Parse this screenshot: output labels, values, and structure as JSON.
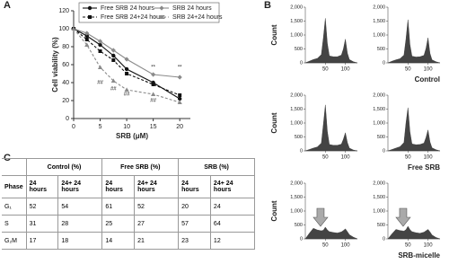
{
  "panels": [
    "A",
    "B",
    "C"
  ],
  "chart_data": [
    {
      "type": "line",
      "xlabel": "SRB (μM)",
      "ylabel": "Cell viability (%)",
      "x": [
        0,
        2.5,
        5,
        7.5,
        10,
        15,
        20
      ],
      "xlim": [
        0,
        22
      ],
      "xticks": [
        0,
        5,
        10,
        15,
        20
      ],
      "ylim": [
        0,
        120
      ],
      "yticks": [
        0,
        20,
        40,
        60,
        80,
        100,
        120
      ],
      "legend": "top",
      "series": [
        {
          "name": "Free SRB 24 hours",
          "color": "#111111",
          "dash": false,
          "marker": "circle",
          "values": [
            100,
            92,
            82,
            70,
            55,
            40,
            22
          ]
        },
        {
          "name": "SRB 24 hours",
          "color": "#8a8a8a",
          "dash": false,
          "marker": "diamond",
          "values": [
            100,
            95,
            86,
            76,
            66,
            49,
            46
          ]
        },
        {
          "name": "Free SRB 24+24 hours",
          "color": "#111111",
          "dash": true,
          "marker": "square",
          "values": [
            100,
            88,
            75,
            65,
            50,
            38,
            26
          ]
        },
        {
          "name": "SRB 24+24 hours",
          "color": "#8a8a8a",
          "dash": true,
          "marker": "triangle",
          "values": [
            100,
            82,
            57,
            42,
            32,
            27,
            18
          ]
        }
      ],
      "annotations": [
        {
          "text": "**",
          "x": 15,
          "y": 57
        },
        {
          "text": "**",
          "x": 20,
          "y": 57
        },
        {
          "text": "##",
          "x": 5,
          "y": 40
        },
        {
          "text": "##",
          "x": 7.5,
          "y": 33
        },
        {
          "text": "##",
          "x": 10,
          "y": 27
        },
        {
          "text": "##",
          "x": 15,
          "y": 20
        }
      ]
    },
    {
      "type": "area",
      "ylabel": "Count",
      "x": [
        0,
        10,
        20,
        30,
        40,
        45,
        50,
        55,
        60,
        70,
        80,
        90,
        95,
        100,
        105,
        110,
        120,
        130
      ],
      "values": [
        0,
        60,
        120,
        160,
        300,
        900,
        1600,
        700,
        250,
        220,
        220,
        280,
        500,
        850,
        350,
        120,
        40,
        0
      ],
      "xlim": [
        0,
        130
      ],
      "xticks": [
        50,
        100
      ],
      "ylim": [
        0,
        2000
      ],
      "yticks": [
        0,
        500,
        {
          "value": 1000,
          "label": "1,000"
        },
        {
          "value": 1500,
          "label": "1,500"
        },
        {
          "value": 2000,
          "label": "2,000"
        }
      ]
    },
    {
      "type": "area",
      "x": [
        0,
        10,
        20,
        30,
        40,
        45,
        50,
        55,
        60,
        70,
        80,
        90,
        95,
        100,
        105,
        110,
        120,
        130
      ],
      "values": [
        0,
        60,
        110,
        150,
        280,
        850,
        1550,
        650,
        240,
        210,
        220,
        270,
        520,
        900,
        340,
        110,
        40,
        0
      ],
      "xlim": [
        0,
        130
      ],
      "xticks": [
        50,
        100
      ],
      "ylim": [
        0,
        2000
      ],
      "yticks": [
        0,
        500,
        {
          "value": 1000,
          "label": "1,000"
        },
        {
          "value": 1500,
          "label": "1,500"
        },
        {
          "value": 2000,
          "label": "2,000"
        }
      ]
    },
    {
      "type": "area",
      "ylabel": "Count",
      "x": [
        0,
        10,
        20,
        30,
        40,
        45,
        50,
        55,
        60,
        70,
        80,
        90,
        95,
        100,
        105,
        110,
        120,
        130
      ],
      "values": [
        0,
        50,
        100,
        140,
        280,
        950,
        1650,
        700,
        230,
        200,
        200,
        240,
        420,
        650,
        300,
        100,
        30,
        0
      ],
      "xlim": [
        0,
        130
      ],
      "xticks": [
        50,
        100
      ],
      "ylim": [
        0,
        2000
      ],
      "yticks": [
        0,
        500,
        {
          "value": 1000,
          "label": "1,000"
        },
        {
          "value": 1500,
          "label": "1,500"
        },
        {
          "value": 2000,
          "label": "2,000"
        }
      ]
    },
    {
      "type": "area",
      "x": [
        0,
        10,
        20,
        30,
        40,
        45,
        50,
        55,
        60,
        70,
        80,
        90,
        95,
        100,
        105,
        110,
        120,
        130
      ],
      "values": [
        0,
        50,
        100,
        150,
        300,
        1000,
        1550,
        680,
        250,
        220,
        230,
        280,
        480,
        750,
        320,
        110,
        40,
        0
      ],
      "xlim": [
        0,
        130
      ],
      "xticks": [
        50,
        100
      ],
      "ylim": [
        0,
        2000
      ],
      "yticks": [
        0,
        500,
        {
          "value": 1000,
          "label": "1,000"
        },
        {
          "value": 1500,
          "label": "1,500"
        },
        {
          "value": 2000,
          "label": "2,000"
        }
      ]
    },
    {
      "type": "area",
      "ylabel": "Count",
      "x": [
        0,
        10,
        20,
        30,
        40,
        45,
        50,
        55,
        60,
        70,
        80,
        90,
        95,
        100,
        105,
        110,
        120,
        130
      ],
      "values": [
        0,
        200,
        380,
        320,
        290,
        310,
        420,
        320,
        260,
        230,
        210,
        250,
        300,
        360,
        260,
        150,
        60,
        0
      ],
      "xlim": [
        0,
        130
      ],
      "xticks": [
        50,
        100
      ],
      "ylim": [
        0,
        2000
      ],
      "yticks": [
        0,
        500,
        {
          "value": 1000,
          "label": "1,000"
        },
        {
          "value": 1500,
          "label": "1,500"
        },
        {
          "value": 2000,
          "label": "2,000"
        }
      ]
    },
    {
      "type": "area",
      "x": [
        0,
        10,
        20,
        30,
        40,
        45,
        50,
        55,
        60,
        70,
        80,
        90,
        95,
        100,
        105,
        110,
        120,
        130
      ],
      "values": [
        0,
        180,
        340,
        300,
        280,
        330,
        450,
        330,
        260,
        220,
        200,
        240,
        290,
        340,
        250,
        140,
        50,
        0
      ],
      "xlim": [
        0,
        130
      ],
      "xticks": [
        50,
        100
      ],
      "ylim": [
        0,
        2000
      ],
      "yticks": [
        0,
        500,
        {
          "value": 1000,
          "label": "1,000"
        },
        {
          "value": 1500,
          "label": "1,500"
        },
        {
          "value": 2000,
          "label": "2,000"
        }
      ]
    }
  ],
  "panel_b_captions": [
    "Control",
    "Free SRB",
    "SRB-micelle"
  ],
  "table": {
    "groups": [
      "Control (%)",
      "Free SRB (%)",
      "SRB (%)"
    ],
    "columns": [
      "Phase",
      "24 hours",
      "24+ 24 hours",
      "24 hours",
      "24+ 24 hours",
      "24 hours",
      "24+ 24 hours"
    ],
    "rows": [
      [
        "G₁",
        52,
        54,
        61,
        52,
        20,
        24
      ],
      [
        "S",
        31,
        28,
        25,
        27,
        57,
        64
      ],
      [
        "G₂M",
        17,
        18,
        14,
        21,
        23,
        12
      ]
    ]
  }
}
